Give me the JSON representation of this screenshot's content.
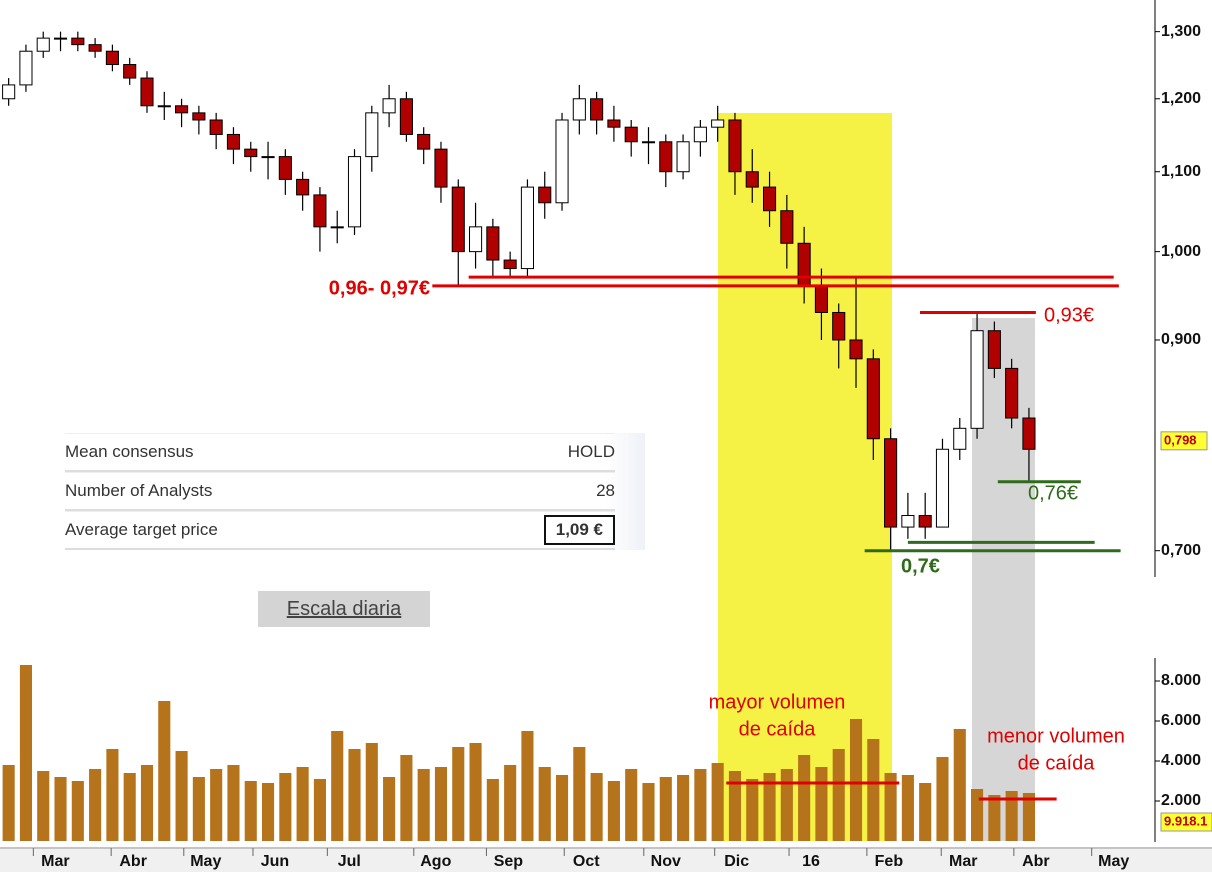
{
  "chart_data": {
    "type": "candlestick",
    "x": [
      0,
      1,
      2,
      3,
      4,
      5,
      6,
      7,
      8,
      9,
      10,
      11,
      12,
      13,
      14,
      15,
      16,
      17,
      18,
      19,
      20,
      21,
      22,
      23,
      24,
      25,
      26,
      27,
      28,
      29,
      30,
      31,
      32,
      33,
      34,
      35,
      36,
      37,
      38,
      39,
      40,
      41,
      42,
      43,
      44,
      45,
      46,
      47,
      48,
      49,
      50,
      51,
      52,
      53,
      54,
      55,
      56,
      57,
      58,
      59
    ],
    "open": [
      1.2,
      1.22,
      1.27,
      1.29,
      1.29,
      1.28,
      1.27,
      1.25,
      1.23,
      1.19,
      1.19,
      1.18,
      1.17,
      1.15,
      1.13,
      1.12,
      1.12,
      1.09,
      1.07,
      1.03,
      1.03,
      1.12,
      1.18,
      1.2,
      1.15,
      1.13,
      1.08,
      1.0,
      1.03,
      0.99,
      0.98,
      1.08,
      1.06,
      1.17,
      1.2,
      1.17,
      1.16,
      1.14,
      1.14,
      1.1,
      1.14,
      1.16,
      1.17,
      1.1,
      1.08,
      1.05,
      1.01,
      0.96,
      0.93,
      0.9,
      0.88,
      0.8,
      0.72,
      0.73,
      0.72,
      0.79,
      0.81,
      0.91,
      0.87,
      0.82
    ],
    "high": [
      1.23,
      1.28,
      1.3,
      1.3,
      1.3,
      1.29,
      1.28,
      1.26,
      1.24,
      1.21,
      1.2,
      1.19,
      1.18,
      1.16,
      1.14,
      1.14,
      1.13,
      1.1,
      1.08,
      1.05,
      1.13,
      1.19,
      1.22,
      1.21,
      1.16,
      1.14,
      1.09,
      1.06,
      1.04,
      1.0,
      1.09,
      1.1,
      1.18,
      1.22,
      1.21,
      1.19,
      1.17,
      1.16,
      1.15,
      1.15,
      1.17,
      1.19,
      1.18,
      1.13,
      1.1,
      1.07,
      1.03,
      0.98,
      0.94,
      0.97,
      0.89,
      0.81,
      0.75,
      0.75,
      0.8,
      0.82,
      0.93,
      0.92,
      0.88,
      0.83
    ],
    "low": [
      1.19,
      1.21,
      1.26,
      1.27,
      1.27,
      1.26,
      1.24,
      1.22,
      1.18,
      1.17,
      1.16,
      1.15,
      1.13,
      1.11,
      1.1,
      1.09,
      1.07,
      1.05,
      1.0,
      1.01,
      1.02,
      1.1,
      1.16,
      1.14,
      1.11,
      1.06,
      0.96,
      0.98,
      0.97,
      0.97,
      0.97,
      1.04,
      1.05,
      1.15,
      1.15,
      1.14,
      1.12,
      1.11,
      1.08,
      1.09,
      1.12,
      1.14,
      1.07,
      1.06,
      1.03,
      0.98,
      0.94,
      0.9,
      0.87,
      0.85,
      0.78,
      0.7,
      0.71,
      0.71,
      0.72,
      0.78,
      0.8,
      0.86,
      0.81,
      0.76
    ],
    "close": [
      1.22,
      1.27,
      1.29,
      1.29,
      1.28,
      1.27,
      1.25,
      1.23,
      1.19,
      1.19,
      1.18,
      1.17,
      1.15,
      1.13,
      1.12,
      1.12,
      1.09,
      1.07,
      1.03,
      1.03,
      1.12,
      1.18,
      1.2,
      1.15,
      1.13,
      1.08,
      1.0,
      1.03,
      0.99,
      0.98,
      1.08,
      1.06,
      1.17,
      1.2,
      1.17,
      1.16,
      1.14,
      1.14,
      1.1,
      1.14,
      1.16,
      1.17,
      1.1,
      1.08,
      1.05,
      1.01,
      0.96,
      0.93,
      0.9,
      0.88,
      0.8,
      0.72,
      0.73,
      0.72,
      0.79,
      0.81,
      0.91,
      0.87,
      0.82,
      0.79
    ],
    "up_color": "#ffffff",
    "down_color": "#b00000",
    "xlim": [
      -0.5,
      66
    ],
    "xticks": [
      {
        "value": 2.7,
        "label": "Mar"
      },
      {
        "value": 7.2,
        "label": "Abr"
      },
      {
        "value": 11.4,
        "label": "May"
      },
      {
        "value": 15.4,
        "label": "Jun"
      },
      {
        "value": 19.7,
        "label": "Jul"
      },
      {
        "value": 24.7,
        "label": "Ago"
      },
      {
        "value": 28.9,
        "label": "Sep"
      },
      {
        "value": 33.4,
        "label": "Oct"
      },
      {
        "value": 38,
        "label": "Nov"
      },
      {
        "value": 42.1,
        "label": "Dic"
      },
      {
        "value": 46.4,
        "label": "16"
      },
      {
        "value": 50.9,
        "label": "Feb"
      },
      {
        "value": 55.2,
        "label": "Mar"
      },
      {
        "value": 59.4,
        "label": "Abr"
      },
      {
        "value": 63.9,
        "label": "May"
      }
    ],
    "ylim": [
      0.68,
      1.35
    ],
    "log_scale": true,
    "yticks": [
      {
        "value": 0.7,
        "label": "0,700"
      },
      {
        "value": 0.9,
        "label": "0,900"
      },
      {
        "value": 1.0,
        "label": "1,000"
      },
      {
        "value": 1.1,
        "label": "1,100"
      },
      {
        "value": 1.2,
        "label": "1,200"
      },
      {
        "value": 1.3,
        "label": "1,300"
      }
    ],
    "last_price": {
      "value": 0.798,
      "label": "0,798"
    },
    "price_levels": [
      {
        "value": 0.97,
        "from": 26.6,
        "to": 63.9,
        "color": "#e00000"
      },
      {
        "value": 0.96,
        "from": 24.5,
        "to": 64.2,
        "color": "#e00000",
        "label": "0,96- 0,97€"
      },
      {
        "value": 0.93,
        "from": 52.7,
        "to": 59.4,
        "color": "#e00000",
        "label": "0,93€"
      },
      {
        "value": 0.76,
        "from": 57.2,
        "to": 62,
        "color": "#2e6b1a",
        "label": "0,76€"
      },
      {
        "value": 0.707,
        "from": 52,
        "to": 62.8,
        "color": "#2e6b1a"
      },
      {
        "value": 0.7,
        "from": 49.5,
        "to": 64.3,
        "color": "#2e6b1a",
        "label": "0,7€"
      }
    ],
    "volume": {
      "values": [
        3800,
        8800,
        3500,
        3200,
        3000,
        3600,
        4600,
        3400,
        3800,
        7000,
        4500,
        3200,
        3600,
        3800,
        3000,
        2900,
        3400,
        3700,
        3100,
        5500,
        4600,
        4900,
        3200,
        4300,
        3600,
        3700,
        4700,
        4900,
        3100,
        3800,
        5500,
        3700,
        3300,
        4700,
        3400,
        3000,
        3600,
        2900,
        3200,
        3300,
        3600,
        3900,
        3500,
        3100,
        3400,
        3600,
        4300,
        3700,
        4600,
        6100,
        5100,
        3400,
        3300,
        2900,
        4200,
        5600,
        2600,
        2300,
        2500,
        2400
      ],
      "color": "#b5741c",
      "ylim": [
        0,
        9150
      ],
      "yticks": [
        {
          "value": 2000,
          "label": "2.000"
        },
        {
          "value": 4000,
          "label": "4.000"
        },
        {
          "value": 6000,
          "label": "6.000"
        },
        {
          "value": 8000,
          "label": "8.000"
        }
      ],
      "last_label": "9.918.1",
      "levels": [
        {
          "value": 2900,
          "from": 41.5,
          "to": 51.5,
          "color": "#e00000"
        },
        {
          "value": 2100,
          "from": 56.1,
          "to": 60.6,
          "color": "#e00000"
        }
      ],
      "annotations": [
        [
          "mayor volumen",
          "de caída"
        ],
        [
          "menor volumen",
          "de caída"
        ]
      ]
    }
  },
  "consensus_table": {
    "rows": [
      [
        "Mean consensus",
        "HOLD"
      ],
      [
        "Number of Analysts",
        "28"
      ],
      [
        "Average target price",
        "1,09 €"
      ]
    ]
  },
  "button": "Escala diaria"
}
